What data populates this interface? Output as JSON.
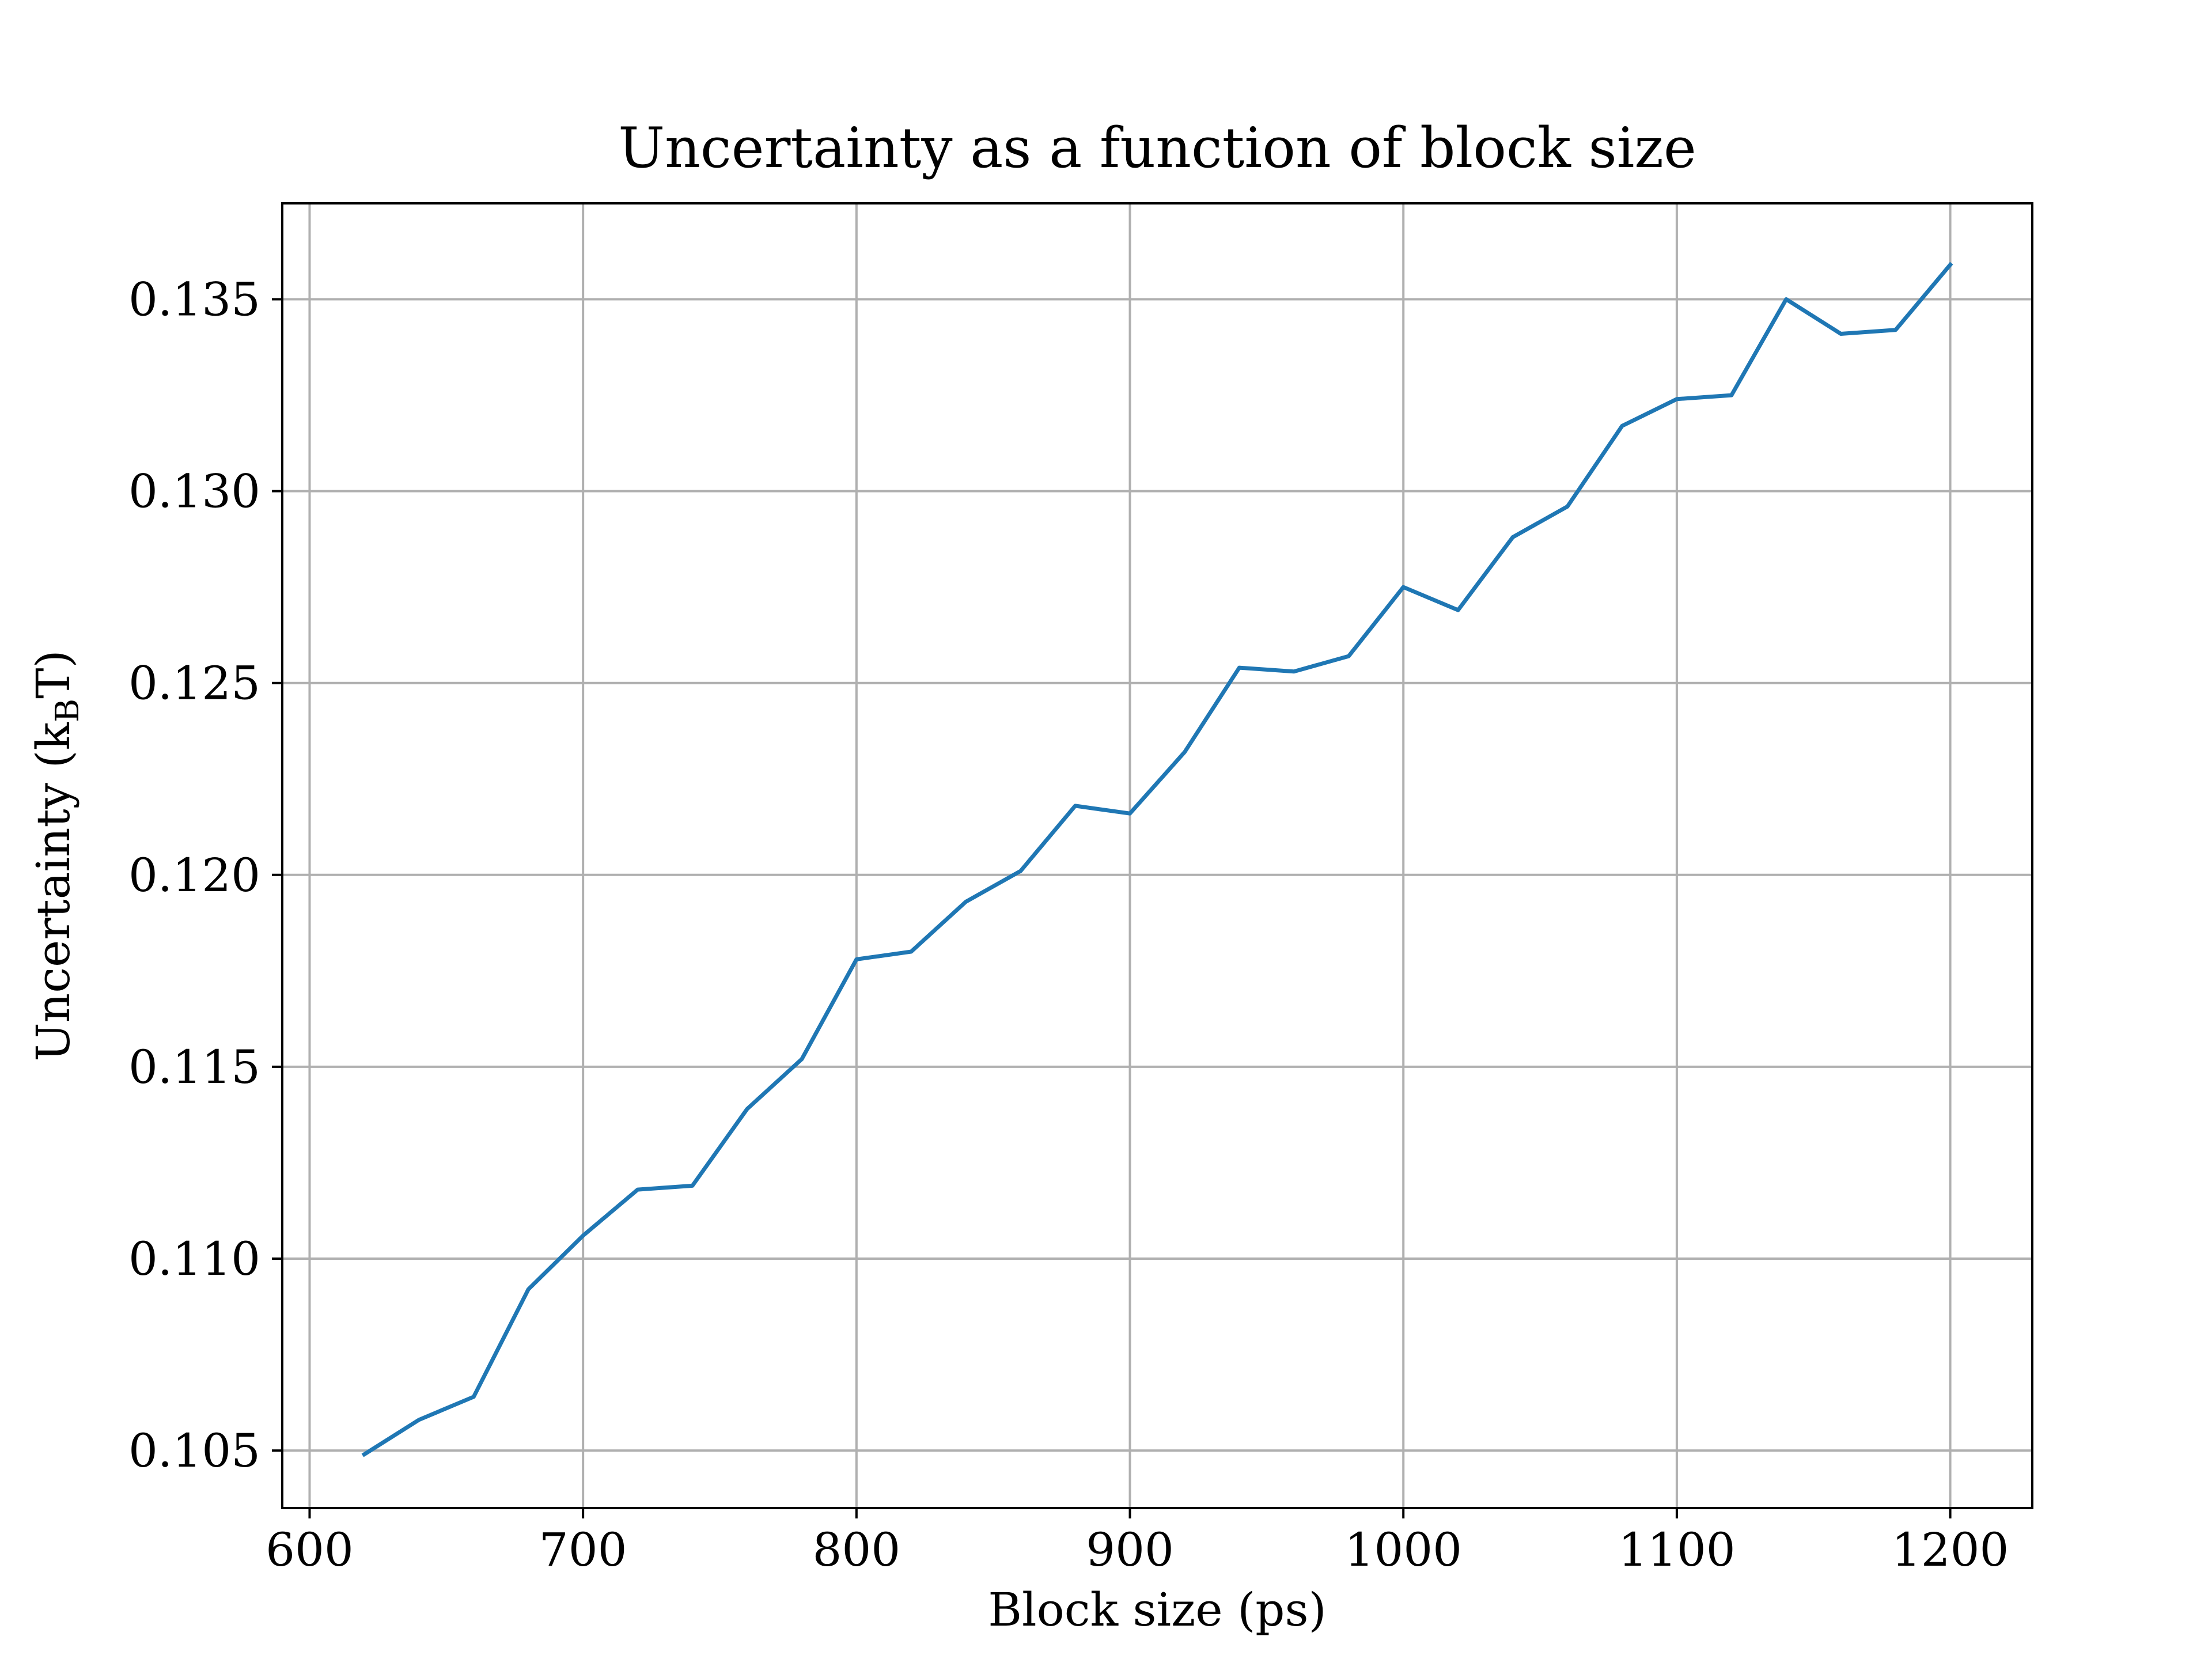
{
  "chart_data": {
    "type": "line",
    "title": "Uncertainty as a function of block size",
    "xlabel": "Block size (ps)",
    "ylabel": {
      "prefix": "Uncertainty (k",
      "subscript": "B",
      "suffix": "T)"
    },
    "xlim": [
      590,
      1230
    ],
    "ylim": [
      0.1035,
      0.1375
    ],
    "xticks": [
      600,
      700,
      800,
      900,
      1000,
      1100,
      1200
    ],
    "xtick_labels": [
      "600",
      "700",
      "800",
      "900",
      "1000",
      "1100",
      "1200"
    ],
    "yticks": [
      0.105,
      0.11,
      0.115,
      0.12,
      0.125,
      0.13,
      0.135
    ],
    "ytick_labels": [
      "0.105",
      "0.110",
      "0.115",
      "0.120",
      "0.125",
      "0.130",
      "0.135"
    ],
    "grid": true,
    "series": [
      {
        "color": "#1f77b4",
        "x": [
          620,
          640,
          660,
          680,
          700,
          720,
          740,
          760,
          780,
          800,
          820,
          840,
          860,
          880,
          900,
          920,
          940,
          960,
          980,
          1000,
          1020,
          1040,
          1060,
          1080,
          1100,
          1120,
          1140,
          1160,
          1180,
          1200
        ],
        "y": [
          0.1049,
          0.1058,
          0.1064,
          0.1092,
          0.1106,
          0.1118,
          0.1119,
          0.1139,
          0.1152,
          0.1178,
          0.118,
          0.1193,
          0.1201,
          0.1218,
          0.1216,
          0.1232,
          0.1254,
          0.1253,
          0.1257,
          0.1275,
          0.1269,
          0.1288,
          0.1296,
          0.1317,
          0.1324,
          0.1325,
          0.135,
          0.1341,
          0.1342,
          0.1359
        ]
      }
    ]
  },
  "colors": {
    "line": "#1f77b4",
    "grid": "#b0b0b0",
    "axes": "#000000",
    "background": "#ffffff"
  }
}
